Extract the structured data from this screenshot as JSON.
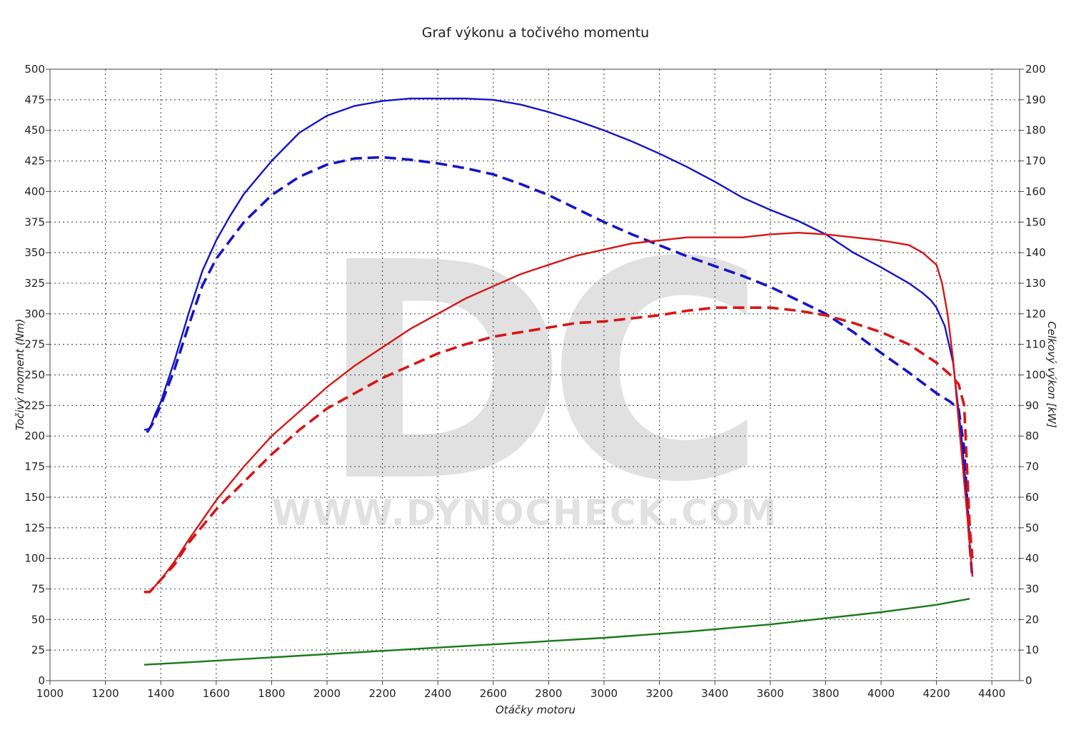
{
  "chart_data": {
    "type": "line",
    "title": "Graf výkonu a točivého momentu",
    "xlabel": "Otáčky motoru",
    "ylabel_left": "Točivý moment (Nm)",
    "ylabel_right": "Celkový výkon [kW]",
    "xlim": [
      1000,
      4500
    ],
    "ylim_left": [
      0,
      500
    ],
    "ylim_right": [
      0,
      200
    ],
    "x_ticks": [
      1000,
      1200,
      1400,
      1600,
      1800,
      2000,
      2200,
      2400,
      2600,
      2800,
      3000,
      3200,
      3400,
      3600,
      3800,
      4000,
      4200,
      4400
    ],
    "y_left_ticks": [
      0,
      25,
      50,
      75,
      100,
      125,
      150,
      175,
      200,
      225,
      250,
      275,
      300,
      325,
      350,
      375,
      400,
      425,
      450,
      475,
      500
    ],
    "y_right_ticks": [
      0,
      10,
      20,
      30,
      40,
      50,
      60,
      70,
      80,
      90,
      100,
      110,
      120,
      130,
      140,
      150,
      160,
      170,
      180,
      190,
      200
    ],
    "grid": true,
    "watermark": {
      "letters": "DC",
      "url": "WWW.DYNOCHECK.COM"
    },
    "series": [
      {
        "color": "#1515c8",
        "dash": "solid",
        "axis": "left",
        "points": [
          [
            1340,
            205
          ],
          [
            1360,
            206
          ],
          [
            1380,
            218
          ],
          [
            1400,
            228
          ],
          [
            1450,
            262
          ],
          [
            1500,
            300
          ],
          [
            1550,
            335
          ],
          [
            1600,
            360
          ],
          [
            1650,
            380
          ],
          [
            1700,
            398
          ],
          [
            1800,
            425
          ],
          [
            1900,
            448
          ],
          [
            2000,
            462
          ],
          [
            2100,
            470
          ],
          [
            2200,
            474
          ],
          [
            2300,
            476
          ],
          [
            2400,
            476
          ],
          [
            2500,
            476
          ],
          [
            2600,
            475
          ],
          [
            2700,
            471
          ],
          [
            2800,
            465
          ],
          [
            2900,
            458
          ],
          [
            3000,
            450
          ],
          [
            3100,
            441
          ],
          [
            3200,
            431
          ],
          [
            3300,
            420
          ],
          [
            3400,
            408
          ],
          [
            3500,
            395
          ],
          [
            3600,
            385
          ],
          [
            3700,
            376
          ],
          [
            3800,
            365
          ],
          [
            3900,
            350
          ],
          [
            4000,
            338
          ],
          [
            4100,
            325
          ],
          [
            4150,
            317
          ],
          [
            4180,
            311
          ],
          [
            4200,
            305
          ],
          [
            4230,
            290
          ],
          [
            4260,
            260
          ],
          [
            4290,
            200
          ],
          [
            4310,
            150
          ],
          [
            4320,
            112
          ]
        ]
      },
      {
        "color": "#1515c8",
        "dash": "dashed",
        "axis": "left",
        "points": [
          [
            1350,
            203
          ],
          [
            1370,
            210
          ],
          [
            1400,
            225
          ],
          [
            1450,
            255
          ],
          [
            1500,
            290
          ],
          [
            1550,
            323
          ],
          [
            1600,
            345
          ],
          [
            1700,
            375
          ],
          [
            1800,
            397
          ],
          [
            1900,
            412
          ],
          [
            2000,
            422
          ],
          [
            2100,
            427
          ],
          [
            2200,
            428
          ],
          [
            2300,
            426
          ],
          [
            2400,
            423
          ],
          [
            2500,
            419
          ],
          [
            2600,
            414
          ],
          [
            2700,
            406
          ],
          [
            2800,
            397
          ],
          [
            2900,
            386
          ],
          [
            3000,
            375
          ],
          [
            3100,
            365
          ],
          [
            3200,
            356
          ],
          [
            3300,
            347
          ],
          [
            3400,
            339
          ],
          [
            3500,
            331
          ],
          [
            3600,
            322
          ],
          [
            3700,
            311
          ],
          [
            3800,
            300
          ],
          [
            3900,
            285
          ],
          [
            4000,
            268
          ],
          [
            4100,
            252
          ],
          [
            4200,
            235
          ],
          [
            4250,
            228
          ],
          [
            4280,
            222
          ],
          [
            4300,
            190
          ],
          [
            4310,
            150
          ],
          [
            4320,
            110
          ],
          [
            4330,
            83
          ]
        ]
      },
      {
        "color": "#d81515",
        "dash": "solid",
        "axis": "right",
        "points": [
          [
            1340,
            29
          ],
          [
            1360,
            29
          ],
          [
            1400,
            33
          ],
          [
            1450,
            39
          ],
          [
            1500,
            46
          ],
          [
            1600,
            59
          ],
          [
            1700,
            70
          ],
          [
            1800,
            80
          ],
          [
            1900,
            88
          ],
          [
            2000,
            96
          ],
          [
            2100,
            103
          ],
          [
            2200,
            109
          ],
          [
            2300,
            115
          ],
          [
            2400,
            120
          ],
          [
            2500,
            125
          ],
          [
            2600,
            129
          ],
          [
            2700,
            133
          ],
          [
            2800,
            136
          ],
          [
            2900,
            139
          ],
          [
            3000,
            141
          ],
          [
            3100,
            143
          ],
          [
            3200,
            144
          ],
          [
            3300,
            145
          ],
          [
            3400,
            145
          ],
          [
            3500,
            145
          ],
          [
            3600,
            146
          ],
          [
            3700,
            146.5
          ],
          [
            3800,
            146
          ],
          [
            3900,
            145
          ],
          [
            4000,
            144
          ],
          [
            4100,
            142.5
          ],
          [
            4150,
            140
          ],
          [
            4200,
            136
          ],
          [
            4220,
            130
          ],
          [
            4240,
            120
          ],
          [
            4260,
            105
          ],
          [
            4280,
            85
          ],
          [
            4300,
            65
          ],
          [
            4310,
            55
          ],
          [
            4320,
            44
          ],
          [
            4330,
            34
          ]
        ]
      },
      {
        "color": "#d81515",
        "dash": "dashed",
        "axis": "right",
        "points": [
          [
            1340,
            29
          ],
          [
            1360,
            29
          ],
          [
            1400,
            33
          ],
          [
            1450,
            38
          ],
          [
            1500,
            45
          ],
          [
            1600,
            56
          ],
          [
            1700,
            65
          ],
          [
            1800,
            74
          ],
          [
            1900,
            82
          ],
          [
            2000,
            89
          ],
          [
            2100,
            94
          ],
          [
            2200,
            99
          ],
          [
            2300,
            103
          ],
          [
            2400,
            107
          ],
          [
            2500,
            110
          ],
          [
            2600,
            112.5
          ],
          [
            2700,
            114
          ],
          [
            2800,
            115.5
          ],
          [
            2900,
            117
          ],
          [
            3000,
            117.5
          ],
          [
            3100,
            118.5
          ],
          [
            3200,
            119.5
          ],
          [
            3300,
            121
          ],
          [
            3400,
            122
          ],
          [
            3500,
            122
          ],
          [
            3600,
            122
          ],
          [
            3700,
            121
          ],
          [
            3800,
            119.5
          ],
          [
            3900,
            117
          ],
          [
            4000,
            114
          ],
          [
            4100,
            110
          ],
          [
            4200,
            104
          ],
          [
            4250,
            100
          ],
          [
            4280,
            97
          ],
          [
            4300,
            90
          ],
          [
            4310,
            70
          ],
          [
            4320,
            50
          ],
          [
            4330,
            40
          ]
        ]
      },
      {
        "color": "#197a19",
        "dash": "solid",
        "axis": "left",
        "points": [
          [
            1340,
            13
          ],
          [
            1500,
            15
          ],
          [
            1800,
            19
          ],
          [
            2100,
            23
          ],
          [
            2400,
            27
          ],
          [
            2700,
            31
          ],
          [
            3000,
            35
          ],
          [
            3300,
            40
          ],
          [
            3600,
            46
          ],
          [
            3800,
            51
          ],
          [
            4000,
            56
          ],
          [
            4200,
            62
          ],
          [
            4320,
            67
          ]
        ]
      }
    ]
  }
}
